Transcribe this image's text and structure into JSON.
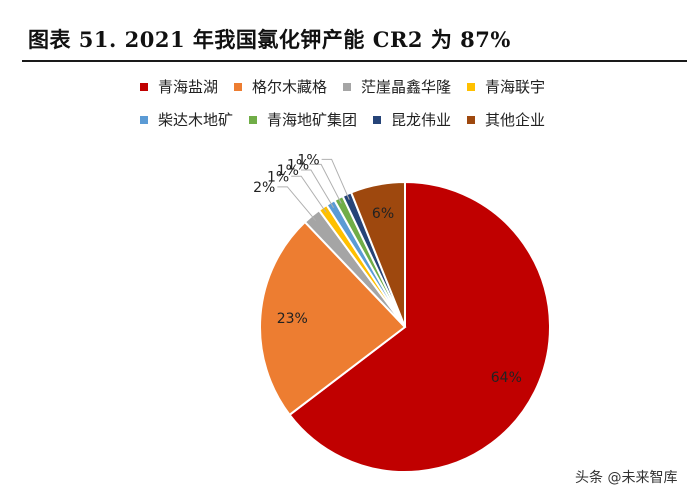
{
  "title": "图表 51. 2021 年我国氯化钾产能 CR2 为 87%",
  "watermark": "头条 @未来智库",
  "chart_data": {
    "type": "pie",
    "title": "图表 51. 2021 年我国氯化钾产能 CR2 为 87%",
    "slices": [
      {
        "name": "青海盐湖",
        "value": 64,
        "label": "64%",
        "color": "#c00000"
      },
      {
        "name": "格尔木藏格",
        "value": 23,
        "label": "23%",
        "color": "#ed7d31"
      },
      {
        "name": "茫崖晶鑫华隆",
        "value": 2,
        "label": "2%",
        "color": "#a5a5a5"
      },
      {
        "name": "青海联宇",
        "value": 1,
        "label": "1%",
        "color": "#ffc000"
      },
      {
        "name": "柴达木地矿",
        "value": 1,
        "label": "1%",
        "color": "#5b9bd5"
      },
      {
        "name": "青海地矿集团",
        "value": 1,
        "label": "1%",
        "color": "#70ad47"
      },
      {
        "name": "昆龙伟业",
        "value": 1,
        "label": "1%",
        "color": "#264478"
      },
      {
        "name": "其他企业",
        "value": 6,
        "label": "6%",
        "color": "#9e480e"
      }
    ],
    "legend_position": "top"
  }
}
